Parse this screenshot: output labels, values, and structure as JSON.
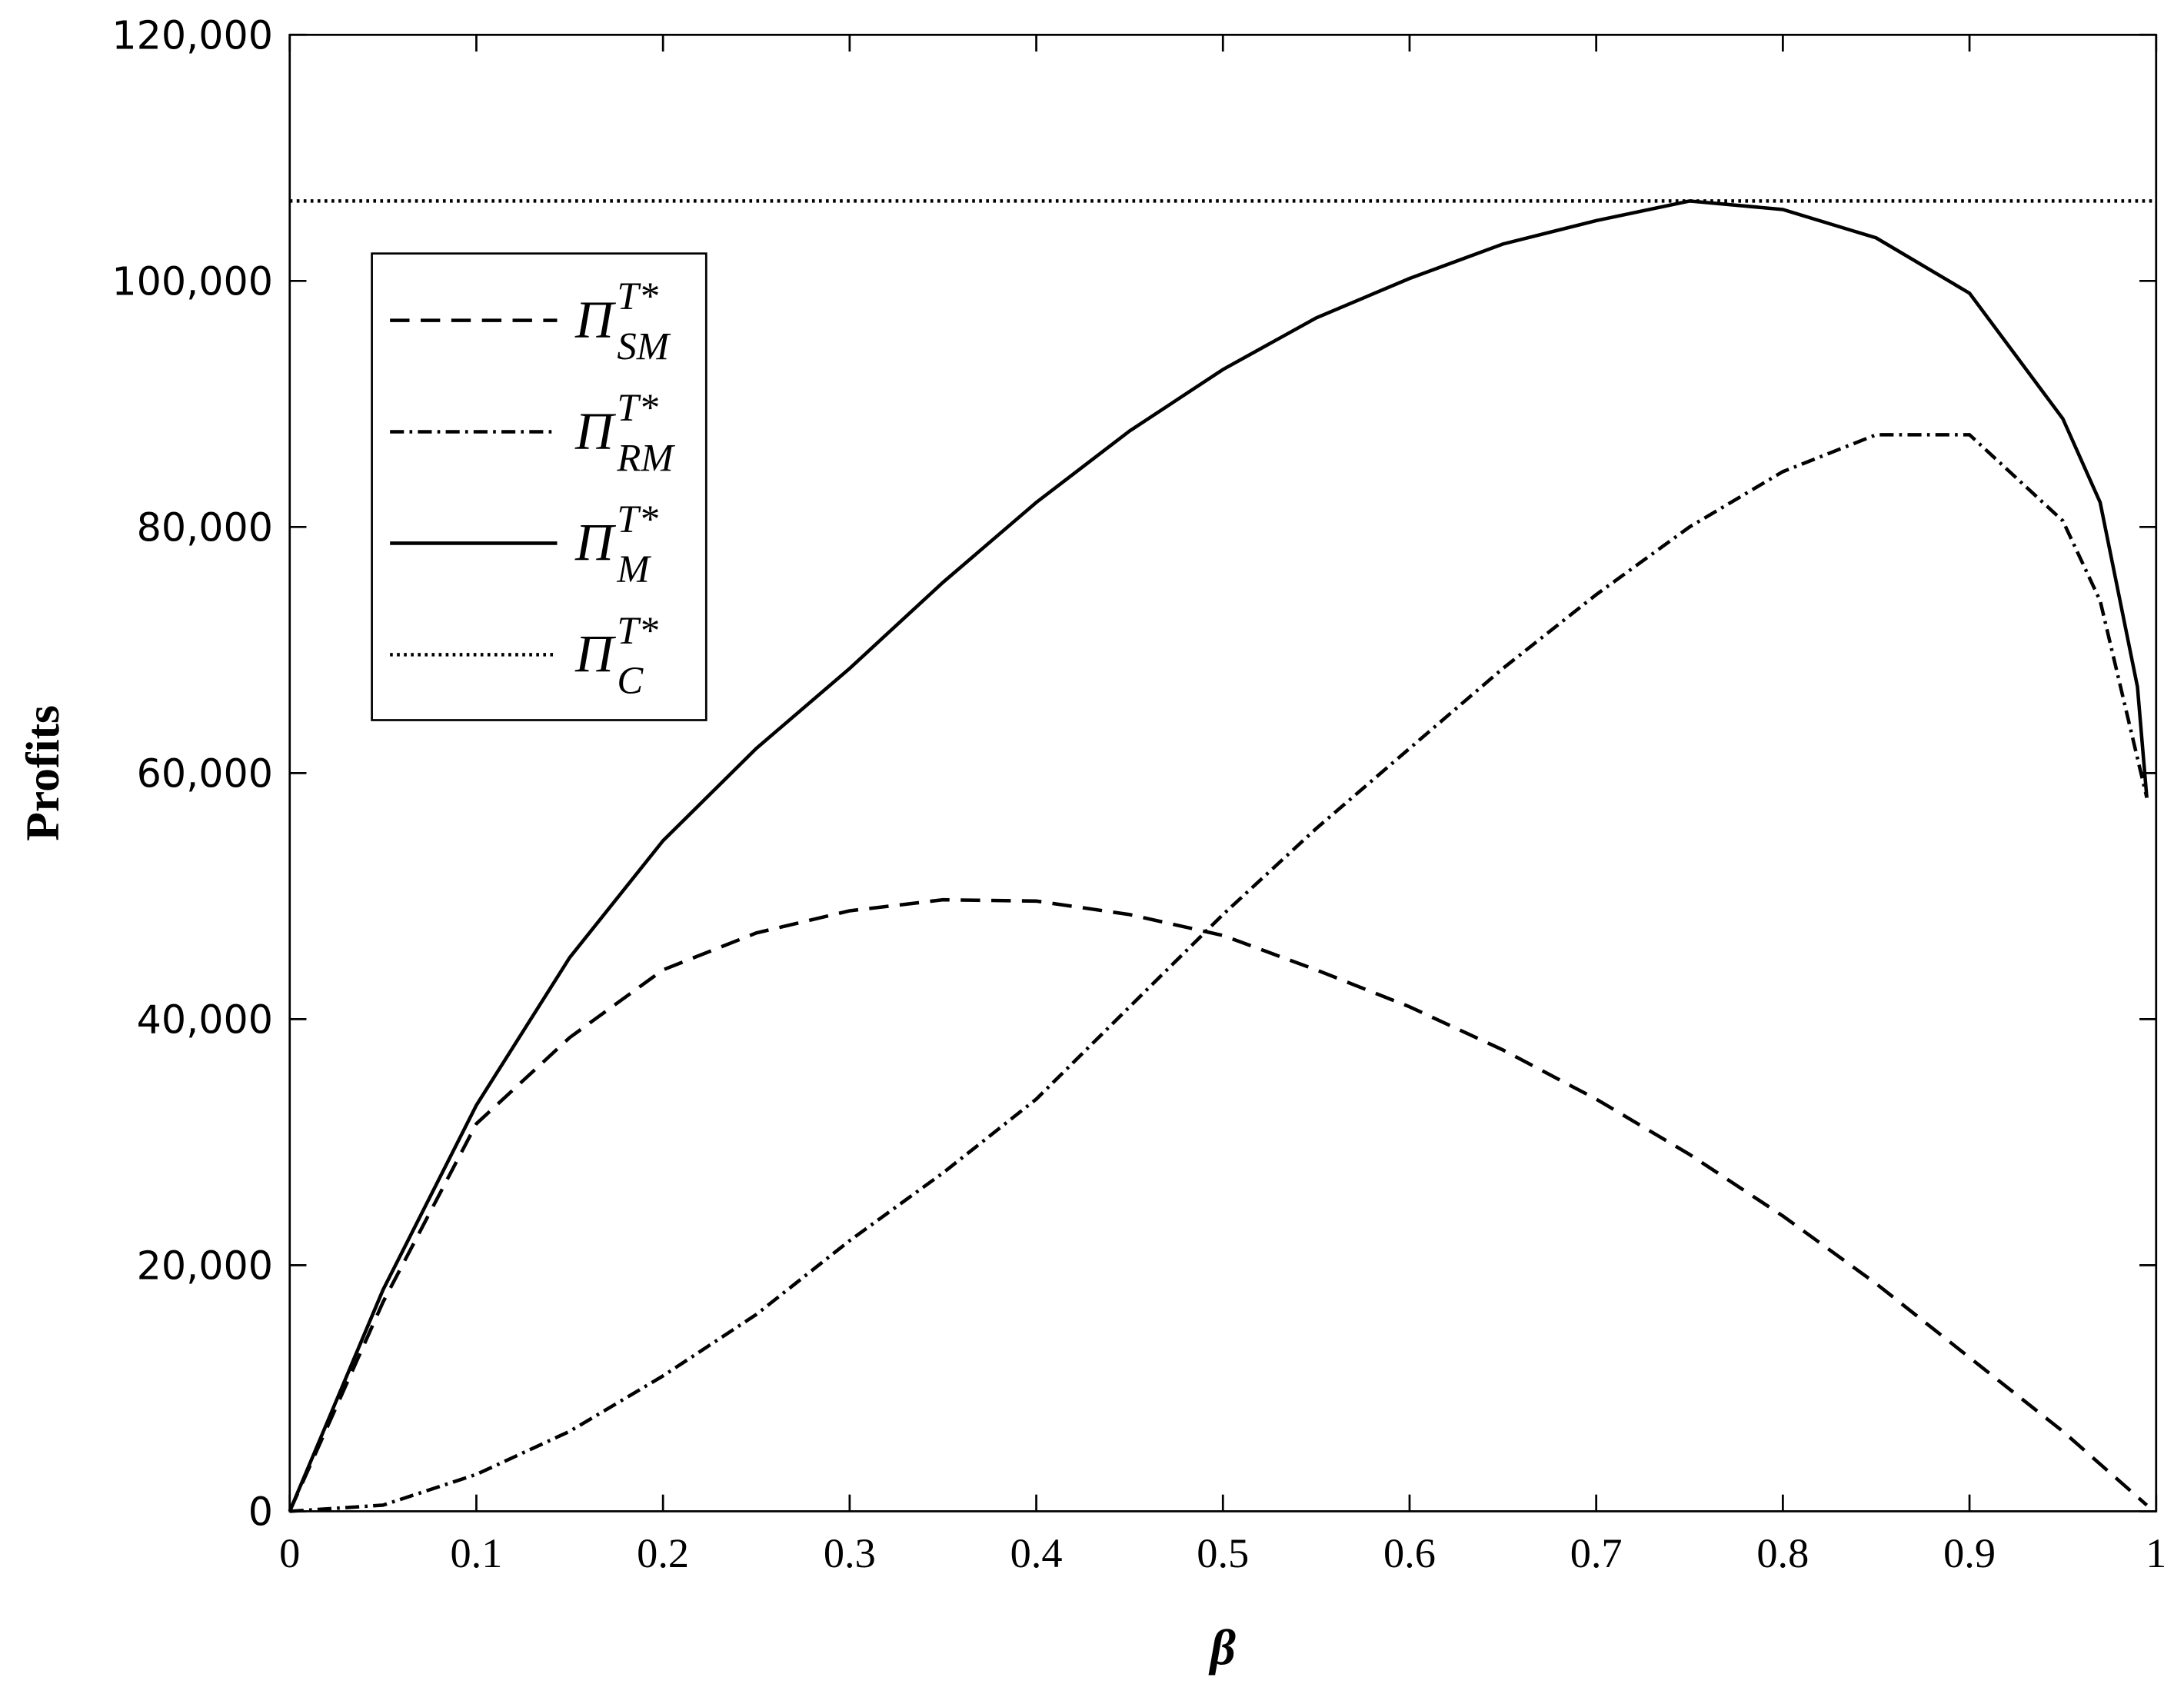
{
  "chart_data": {
    "type": "line",
    "x_label": "β",
    "y_label": "Profits",
    "xlim": [
      0,
      1
    ],
    "ylim": [
      0,
      120000
    ],
    "xticks": [
      0,
      0.1,
      0.2,
      0.3,
      0.4,
      0.5,
      0.6,
      0.7,
      0.8,
      0.9,
      1
    ],
    "yticks": [
      0,
      {
        "value": 20000,
        "label": "20,000"
      },
      {
        "value": 40000,
        "label": "40,000"
      },
      {
        "value": 60000,
        "label": "60,000"
      },
      {
        "value": 80000,
        "label": "80,000"
      },
      {
        "value": 100000,
        "label": "100,000"
      },
      {
        "value": 120000,
        "label": "120,000"
      }
    ],
    "legend": "upper left",
    "series": [
      {
        "name": "Π",
        "name_sup": "T*",
        "name_sub": "SM",
        "color": "#000000",
        "dash": "dashed",
        "x": [
          0,
          0.05,
          0.1,
          0.15,
          0.2,
          0.25,
          0.3,
          0.35,
          0.4,
          0.45,
          0.5,
          0.55,
          0.6,
          0.65,
          0.7,
          0.75,
          0.8,
          0.85,
          0.9,
          0.95,
          0.995
        ],
        "values": [
          0,
          17000,
          31500,
          38500,
          44000,
          47000,
          48800,
          49700,
          49600,
          48500,
          46800,
          44000,
          41000,
          37500,
          33500,
          29000,
          24000,
          18500,
          12500,
          6500,
          500
        ]
      },
      {
        "name": "Π",
        "name_sup": "T*",
        "name_sub": "RM",
        "color": "#000000",
        "dash": "dashdot",
        "x": [
          0,
          0.05,
          0.1,
          0.15,
          0.2,
          0.25,
          0.3,
          0.35,
          0.4,
          0.45,
          0.5,
          0.55,
          0.6,
          0.65,
          0.7,
          0.75,
          0.8,
          0.85,
          0.9,
          0.95,
          0.97,
          0.995
        ],
        "values": [
          0,
          500,
          3000,
          6500,
          11000,
          16000,
          22000,
          27500,
          33500,
          41000,
          48500,
          55500,
          62000,
          68500,
          74500,
          80000,
          84500,
          87500,
          87500,
          80500,
          74000,
          58000
        ]
      },
      {
        "name": "Π",
        "name_sup": "T*",
        "name_sub": "M",
        "color": "#000000",
        "dash": "solid",
        "x": [
          0,
          0.05,
          0.1,
          0.15,
          0.2,
          0.25,
          0.3,
          0.35,
          0.4,
          0.45,
          0.5,
          0.55,
          0.6,
          0.65,
          0.7,
          0.75,
          0.8,
          0.85,
          0.9,
          0.95,
          0.97,
          0.99,
          0.995
        ],
        "values": [
          0,
          18000,
          33000,
          45000,
          54500,
          62000,
          68500,
          75500,
          82000,
          87800,
          92800,
          97000,
          100200,
          103000,
          104900,
          106500,
          105800,
          103500,
          99000,
          88800,
          82000,
          67000,
          58000
        ]
      },
      {
        "name": "Π",
        "name_sup": "T*",
        "name_sub": "C",
        "color": "#000000",
        "dash": "dotted",
        "x": [
          0,
          1
        ],
        "values": [
          106500,
          106500
        ]
      }
    ]
  }
}
